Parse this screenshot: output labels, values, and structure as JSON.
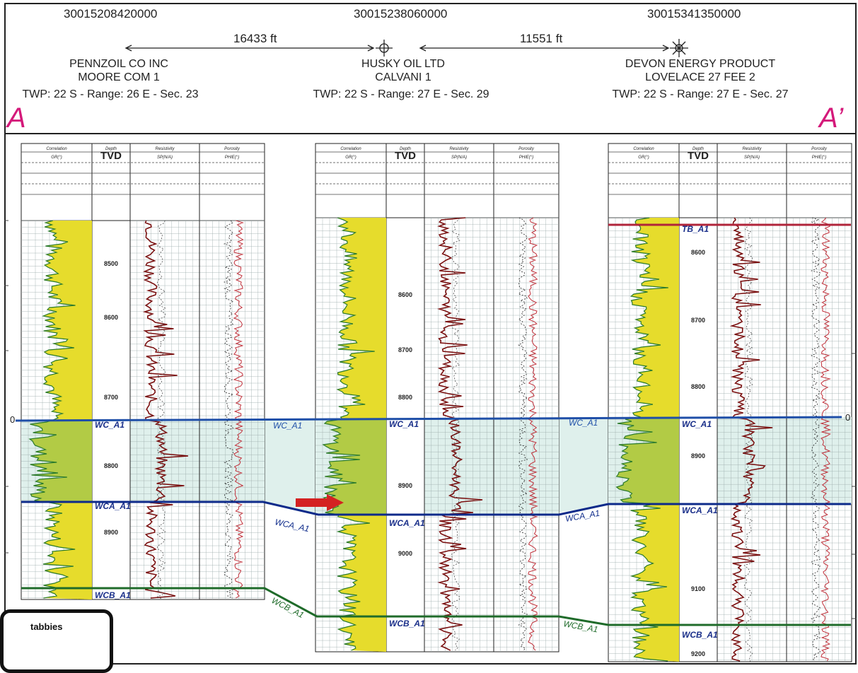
{
  "header": {
    "wells": [
      {
        "api": "30015208420000",
        "operator": "PENNZOIL CO INC",
        "lease": "MOORE COM 1",
        "location": "TWP: 22  S - Range: 26 E - Sec. 23"
      },
      {
        "api": "30015238060000",
        "operator": "HUSKY OIL LTD",
        "lease": "CALVANI 1",
        "location": "TWP: 22  S - Range: 27 E - Sec. 29"
      },
      {
        "api": "30015341350000",
        "operator": "DEVON ENERGY PRODUCT",
        "lease": "LOVELACE 27 FEE 2",
        "location": "TWP: 22  S - Range: 27 E - Sec. 27"
      }
    ],
    "distances": [
      "16433 ft",
      "11551 ft"
    ],
    "section_start": "A",
    "section_end": "A’"
  },
  "tracks": {
    "correlation": "Correlation",
    "gr": "GR(°)",
    "depth": "Depth",
    "tvd": "TVD",
    "resistivity": "Resistivity",
    "porosity": "Porosity",
    "sp": "SP(N/A)",
    "phie": "PHIE(°)"
  },
  "wells": [
    {
      "depths": [
        "8500",
        "8600",
        "8700",
        "8800",
        "8900"
      ],
      "tops": [
        "WC_A1",
        "WCA_A1",
        "WCB_A1"
      ]
    },
    {
      "depths": [
        "8600",
        "8700",
        "8800",
        "8900",
        "9000"
      ],
      "tops": [
        "WC_A1",
        "WCA_A1",
        "WCB_A1"
      ]
    },
    {
      "depths": [
        "8600",
        "8700",
        "8800",
        "8900",
        "9100",
        "9200"
      ],
      "tops": [
        "TB_A1",
        "WC_A1",
        "WCA_A1",
        "WCB_A1"
      ]
    }
  ],
  "correlation_labels": {
    "wc_left": "WC_A1",
    "wc_right": "WC_A1",
    "wca_left": "WCA_A1",
    "wca_right": "WCA_A1",
    "wcb_left": "WCB_A1",
    "wcb_right": "WCB_A1"
  },
  "datum_label": "0",
  "badge": "tabbies",
  "colors": {
    "wc_line": "#1f4fa8",
    "wca_line": "#0d2a8a",
    "wcb_line": "#1f6b2a",
    "tb_line": "#b0243a",
    "label_pink": "#d4197a",
    "arrow": "#d42222",
    "gr_fill": "#e6dc2c",
    "zone_fill": "#dff0ec"
  }
}
